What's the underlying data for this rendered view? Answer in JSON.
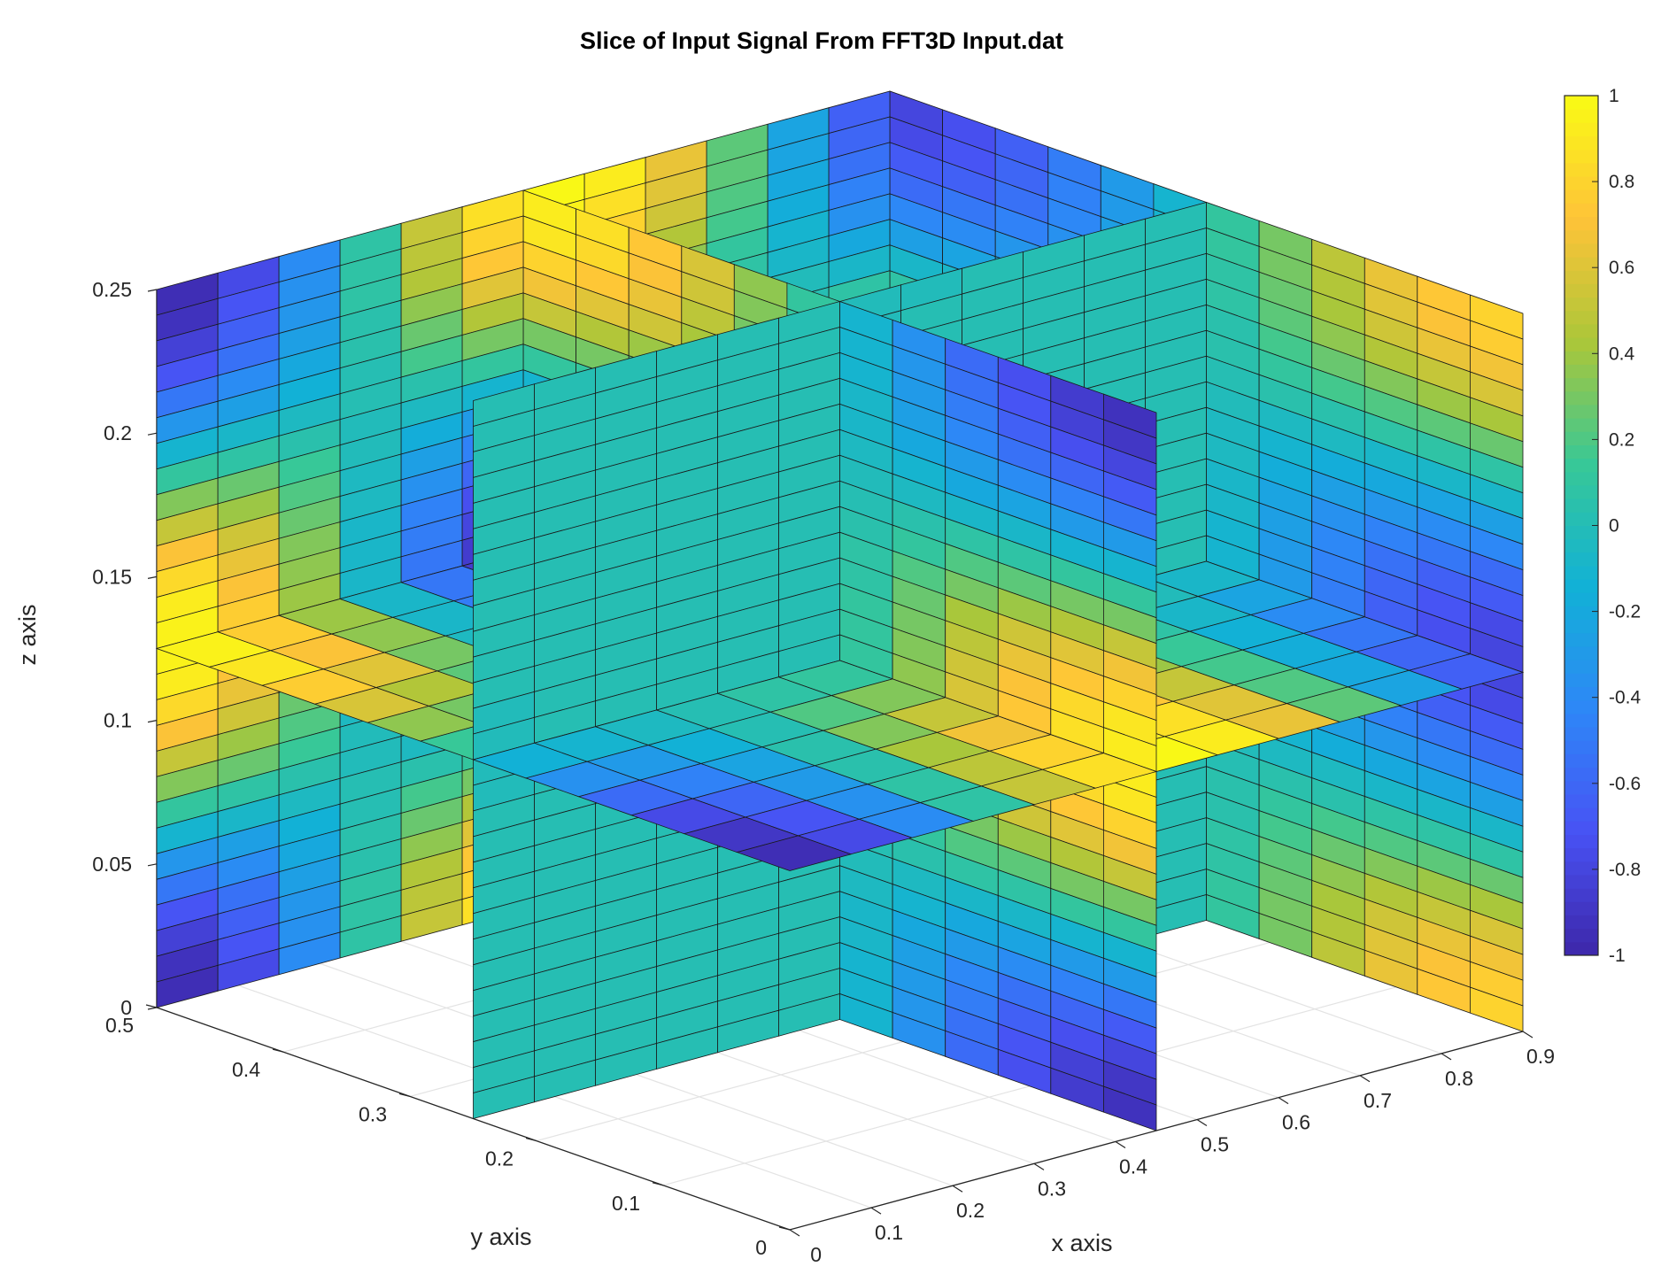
{
  "chart_data": {
    "type": "slice",
    "title": "Slice of Input Signal From FFT3D Input.dat",
    "xlabel": "x axis",
    "ylabel": "y axis",
    "zlabel": "z axis",
    "xlim": [
      0,
      0.9
    ],
    "ylim": [
      0,
      0.5
    ],
    "zlim": [
      0,
      0.25
    ],
    "x_ticks": [
      "0",
      "0.1",
      "0.2",
      "0.3",
      "0.4",
      "0.5",
      "0.6",
      "0.7",
      "0.8",
      "0.9"
    ],
    "y_ticks": [
      "0",
      "0.1",
      "0.2",
      "0.3",
      "0.4",
      "0.5"
    ],
    "z_ticks": [
      "0",
      "0.05",
      "0.1",
      "0.15",
      "0.2",
      "0.25"
    ],
    "slices": {
      "x": [
        0.45,
        0.9
      ],
      "y": [
        0.25,
        0.5
      ],
      "z": [
        0.125
      ]
    },
    "grid": true,
    "colormap": "parula",
    "clim": [
      -1,
      1
    ],
    "colorbar": {
      "placement": "right",
      "ticks": [
        "-1",
        "-0.8",
        "-0.6",
        "-0.4",
        "-0.2",
        "0",
        "0.2",
        "0.4",
        "0.6",
        "0.8",
        "1"
      ]
    }
  }
}
